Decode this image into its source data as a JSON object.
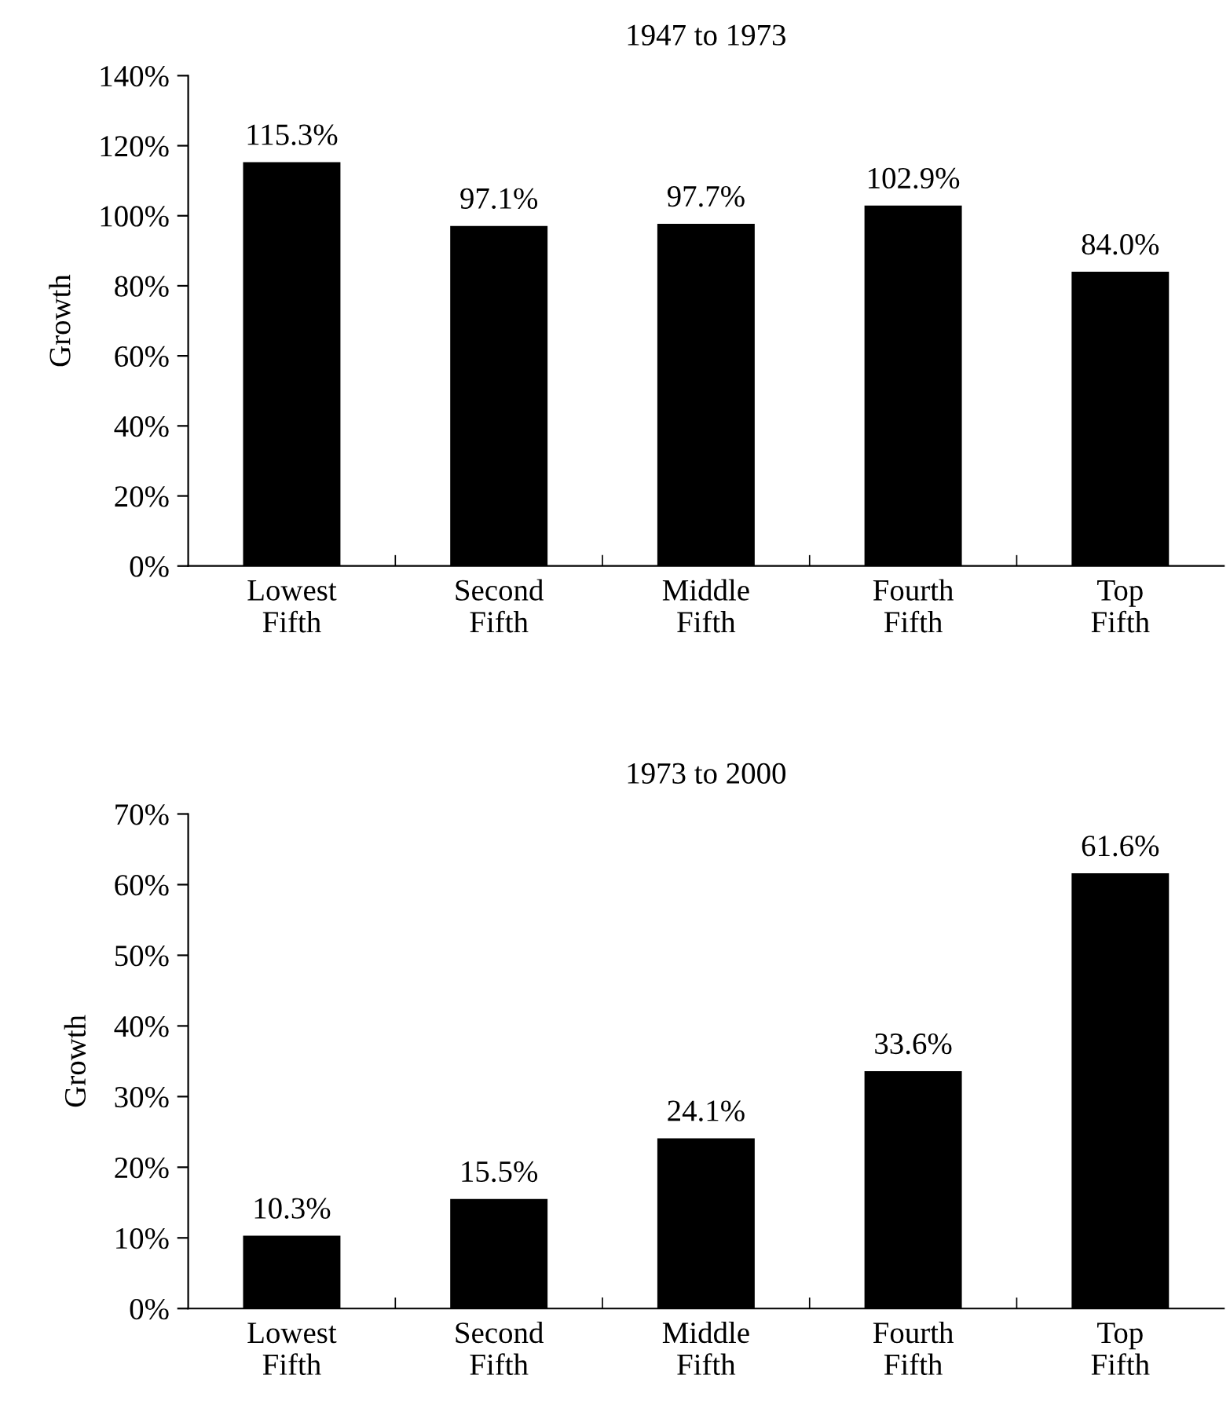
{
  "chart_data": [
    {
      "type": "bar",
      "title": "1947 to 1973",
      "ylabel": "Growth",
      "categories": [
        "Lowest\nFifth",
        "Second\nFifth",
        "Middle\nFifth",
        "Fourth\nFifth",
        "Top\nFifth"
      ],
      "values": [
        115.3,
        97.1,
        97.7,
        102.9,
        84.0
      ],
      "value_labels": [
        "115.3%",
        "97.1%",
        "97.7%",
        "102.9%",
        "84.0%"
      ],
      "color": "#000000",
      "ylim": [
        0,
        140
      ],
      "yticks": [
        {
          "value": 0,
          "label": "0%"
        },
        {
          "value": 20,
          "label": "20%"
        },
        {
          "value": 40,
          "label": "40%"
        },
        {
          "value": 60,
          "label": "60%"
        },
        {
          "value": 80,
          "label": "80%"
        },
        {
          "value": 100,
          "label": "100%"
        },
        {
          "value": 120,
          "label": "120%"
        },
        {
          "value": 140,
          "label": "140%"
        }
      ],
      "grid": false,
      "legend": false
    },
    {
      "type": "bar",
      "title": "1973 to 2000",
      "ylabel": "Growth",
      "categories": [
        "Lowest\nFifth",
        "Second\nFifth",
        "Middle\nFifth",
        "Fourth\nFifth",
        "Top\nFifth"
      ],
      "values": [
        10.3,
        15.5,
        24.1,
        33.6,
        61.6
      ],
      "value_labels": [
        "10.3%",
        "15.5%",
        "24.1%",
        "33.6%",
        "61.6%"
      ],
      "color": "#000000",
      "ylim": [
        0,
        70
      ],
      "yticks": [
        {
          "value": 0,
          "label": "0%"
        },
        {
          "value": 10,
          "label": "10%"
        },
        {
          "value": 20,
          "label": "20%"
        },
        {
          "value": 30,
          "label": "30%"
        },
        {
          "value": 40,
          "label": "40%"
        },
        {
          "value": 50,
          "label": "50%"
        },
        {
          "value": 60,
          "label": "60%"
        },
        {
          "value": 70,
          "label": "70%"
        }
      ],
      "grid": false,
      "legend": false
    }
  ]
}
